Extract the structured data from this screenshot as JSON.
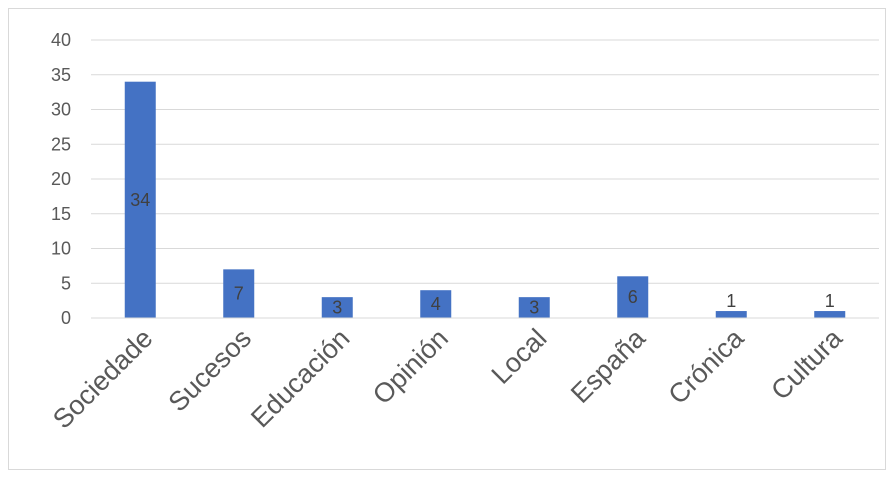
{
  "chart_data": {
    "type": "bar",
    "categories": [
      "Sociedade",
      "Sucesos",
      "Educación",
      "Opinión",
      "Local",
      "España",
      "Crónica",
      "Cultura"
    ],
    "values": [
      34,
      7,
      3,
      4,
      3,
      6,
      1,
      1
    ],
    "data_labels": [
      "34",
      "7",
      "3",
      "4",
      "3",
      "6",
      "1",
      "1"
    ],
    "title": "",
    "xlabel": "",
    "ylabel": "",
    "ylim": [
      0,
      40
    ],
    "yticks": [
      "0",
      "5",
      "10",
      "15",
      "20",
      "25",
      "30",
      "35",
      "40"
    ],
    "grid": true,
    "legend": "none",
    "bar_color": "#4472c4",
    "grid_color": "#d9d9d9",
    "tick_label_color": "#595959"
  }
}
